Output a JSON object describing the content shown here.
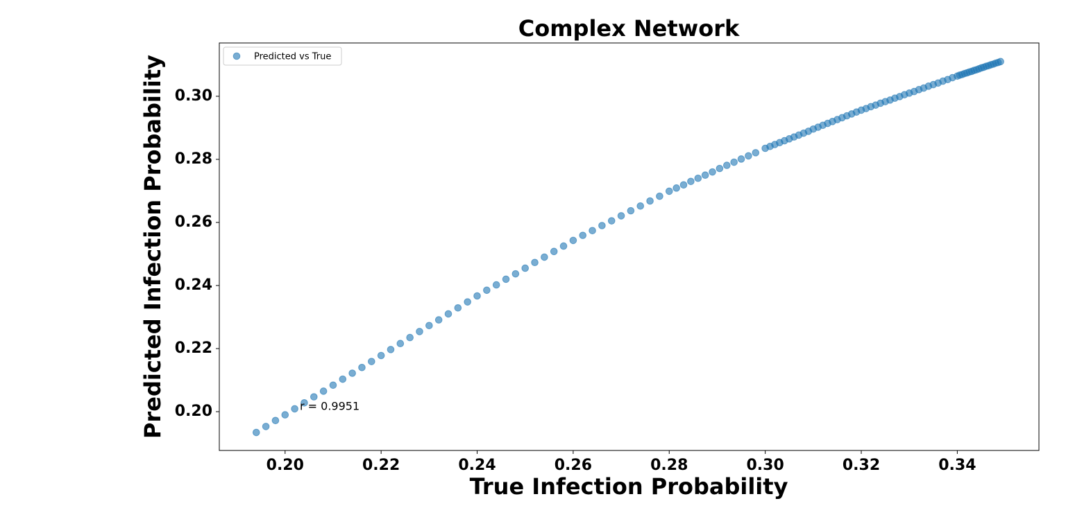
{
  "chart_data": {
    "type": "scatter",
    "title": "Complex Network",
    "xlabel": "True Infection Probability",
    "ylabel": "Predicted Infection Probability",
    "annotation": "r = 0.9951",
    "legend": "upper left",
    "series": [
      {
        "name": "Predicted vs True",
        "color": "#1f77b4",
        "x": [
          0.194,
          0.196,
          0.198,
          0.2,
          0.202,
          0.204,
          0.206,
          0.208,
          0.21,
          0.212,
          0.214,
          0.216,
          0.218,
          0.22,
          0.222,
          0.224,
          0.226,
          0.228,
          0.23,
          0.232,
          0.234,
          0.236,
          0.238,
          0.24,
          0.242,
          0.244,
          0.246,
          0.248,
          0.25,
          0.252,
          0.254,
          0.256,
          0.258,
          0.26,
          0.262,
          0.264,
          0.266,
          0.268,
          0.27,
          0.272,
          0.274,
          0.276,
          0.278,
          0.28,
          0.2815,
          0.283,
          0.2845,
          0.286,
          0.2875,
          0.289,
          0.2905,
          0.292,
          0.2935,
          0.295,
          0.2965,
          0.298,
          0.3,
          0.301,
          0.302,
          0.303,
          0.304,
          0.305,
          0.306,
          0.307,
          0.308,
          0.309,
          0.31,
          0.311,
          0.312,
          0.313,
          0.314,
          0.315,
          0.316,
          0.317,
          0.318,
          0.319,
          0.32,
          0.321,
          0.322,
          0.323,
          0.324,
          0.325,
          0.326,
          0.327,
          0.328,
          0.329,
          0.33,
          0.331,
          0.332,
          0.333,
          0.334,
          0.335,
          0.336,
          0.337,
          0.338,
          0.339,
          0.34,
          0.3405,
          0.341,
          0.3415,
          0.342,
          0.3425,
          0.343,
          0.3435,
          0.344,
          0.3445,
          0.345,
          0.3455,
          0.346,
          0.3465,
          0.347,
          0.3475,
          0.348,
          0.3485,
          0.349
        ],
        "values": [
          0.1934,
          0.1953,
          0.1972,
          0.199,
          0.2009,
          0.2028,
          0.2047,
          0.2065,
          0.2084,
          0.2103,
          0.2122,
          0.214,
          0.2159,
          0.2178,
          0.2197,
          0.2216,
          0.2235,
          0.2254,
          0.2273,
          0.2291,
          0.231,
          0.2329,
          0.2348,
          0.2367,
          0.2385,
          0.2402,
          0.242,
          0.2437,
          0.2455,
          0.2473,
          0.249,
          0.2508,
          0.2525,
          0.2543,
          0.2559,
          0.2574,
          0.259,
          0.2605,
          0.2621,
          0.2637,
          0.2652,
          0.2668,
          0.2683,
          0.2699,
          0.2709,
          0.2719,
          0.273,
          0.274,
          0.275,
          0.276,
          0.2771,
          0.2781,
          0.2791,
          0.2801,
          0.2811,
          0.2821,
          0.2835,
          0.2841,
          0.2847,
          0.2853,
          0.2859,
          0.2865,
          0.2871,
          0.2877,
          0.2883,
          0.2889,
          0.2896,
          0.2902,
          0.2908,
          0.2914,
          0.292,
          0.2926,
          0.2932,
          0.2938,
          0.2944,
          0.295,
          0.2956,
          0.2961,
          0.2967,
          0.2972,
          0.2978,
          0.2983,
          0.2988,
          0.2994,
          0.2999,
          0.3005,
          0.301,
          0.3015,
          0.3021,
          0.3026,
          0.3032,
          0.3037,
          0.3042,
          0.3048,
          0.3053,
          0.3059,
          0.3064,
          0.3067,
          0.3069,
          0.3072,
          0.3074,
          0.3077,
          0.3079,
          0.3082,
          0.3084,
          0.3087,
          0.309,
          0.3092,
          0.3095,
          0.3097,
          0.31,
          0.3102,
          0.3105,
          0.3107,
          0.311
        ]
      }
    ],
    "xlim": [
      0.1863,
      0.357
    ],
    "ylim": [
      0.1877,
      0.3169
    ],
    "xticks": [
      {
        "value": 0.2,
        "label": "0.20"
      },
      {
        "value": 0.22,
        "label": "0.22"
      },
      {
        "value": 0.24,
        "label": "0.24"
      },
      {
        "value": 0.26,
        "label": "0.26"
      },
      {
        "value": 0.28,
        "label": "0.28"
      },
      {
        "value": 0.3,
        "label": "0.30"
      },
      {
        "value": 0.32,
        "label": "0.32"
      },
      {
        "value": 0.34,
        "label": "0.34"
      }
    ],
    "yticks": [
      {
        "value": 0.2,
        "label": "0.20"
      },
      {
        "value": 0.22,
        "label": "0.22"
      },
      {
        "value": 0.24,
        "label": "0.24"
      },
      {
        "value": 0.26,
        "label": "0.26"
      },
      {
        "value": 0.28,
        "label": "0.28"
      },
      {
        "value": 0.3,
        "label": "0.30"
      }
    ],
    "grid": false
  }
}
